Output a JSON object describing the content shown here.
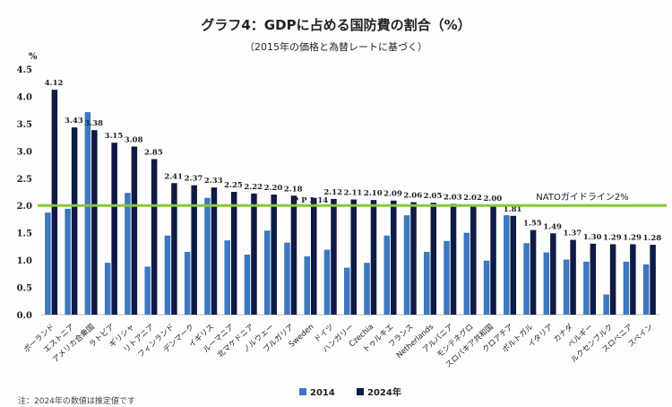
{
  "chart_data": {
    "type": "bar",
    "title": "グラフ4：GDPに占める国防費の割合（%）",
    "subtitle": "（2015年の価格と為替レートに基づく）",
    "ylabel": "%",
    "ylim": [
      0,
      4.5
    ],
    "yticks": [
      "0.0",
      "0.5",
      "1.0",
      "1.5",
      "2.0",
      "2.5",
      "3.0",
      "3.5",
      "4.0",
      "4.5"
    ],
    "categories": [
      "ポーランド",
      "エストニア",
      "アメリカ合衆国",
      "ラトビア",
      "ギリシャ",
      "リトアニア",
      "フィンランド",
      "デンマーク",
      "イギリス",
      "ルーマニア",
      "北マケドニア",
      "ノルウェー",
      "ブルガリア",
      "Sweden",
      "ドイツ",
      "ハンガリー",
      "Czechia",
      "トゥルキエ",
      "フランス",
      "Netherlands",
      "アルバニア",
      "モンテネグロ",
      "スロバキア共和国",
      "クロアチア",
      "ポルトガル",
      "イタリア",
      "カナダ",
      "ベルギー",
      "ルクセンブルク",
      "スロベニア",
      "スペイン"
    ],
    "series": [
      {
        "name": "2014",
        "color": "#3d78c0",
        "values": [
          1.87,
          1.94,
          3.71,
          0.95,
          2.23,
          0.88,
          1.45,
          1.15,
          2.14,
          1.36,
          1.1,
          1.54,
          1.32,
          1.07,
          1.19,
          0.86,
          0.95,
          1.45,
          1.82,
          1.15,
          1.35,
          1.5,
          0.99,
          1.82,
          1.31,
          1.14,
          1.01,
          0.97,
          0.37,
          0.97,
          0.92
        ]
      },
      {
        "name": "2024年",
        "color": "#0f1a45",
        "values": [
          4.12,
          3.43,
          3.38,
          3.15,
          3.08,
          2.85,
          2.41,
          2.37,
          2.33,
          2.25,
          2.22,
          2.2,
          2.18,
          2.14,
          2.12,
          2.11,
          2.1,
          2.09,
          2.06,
          2.05,
          2.03,
          2.02,
          2.0,
          1.81,
          1.55,
          1.49,
          1.37,
          1.3,
          1.29,
          1.29,
          1.28
        ]
      }
    ],
    "value_labels": [
      "4.12",
      "3.43",
      "3.38",
      "3.15",
      "3.08",
      "2.85",
      "2.41",
      "2.37",
      "2.33",
      "2.25",
      "2.22",
      "2.20",
      "2.18",
      "P P 2.14",
      "2.12",
      "2.11",
      "2.10",
      "2.09",
      "2.06",
      "2.05",
      "2.03",
      "2.02",
      "2.00",
      "1.81",
      "1.55",
      "1.49",
      "1.37",
      "1.30",
      "1.29",
      "1.29",
      "1.28"
    ],
    "reference_line": {
      "value": 2.0,
      "label": "NATOガイドライン2%",
      "color": "#8cc63f"
    },
    "legend_position": "bottom",
    "grid": false
  },
  "note": "注：2024年の数値は推定値です"
}
